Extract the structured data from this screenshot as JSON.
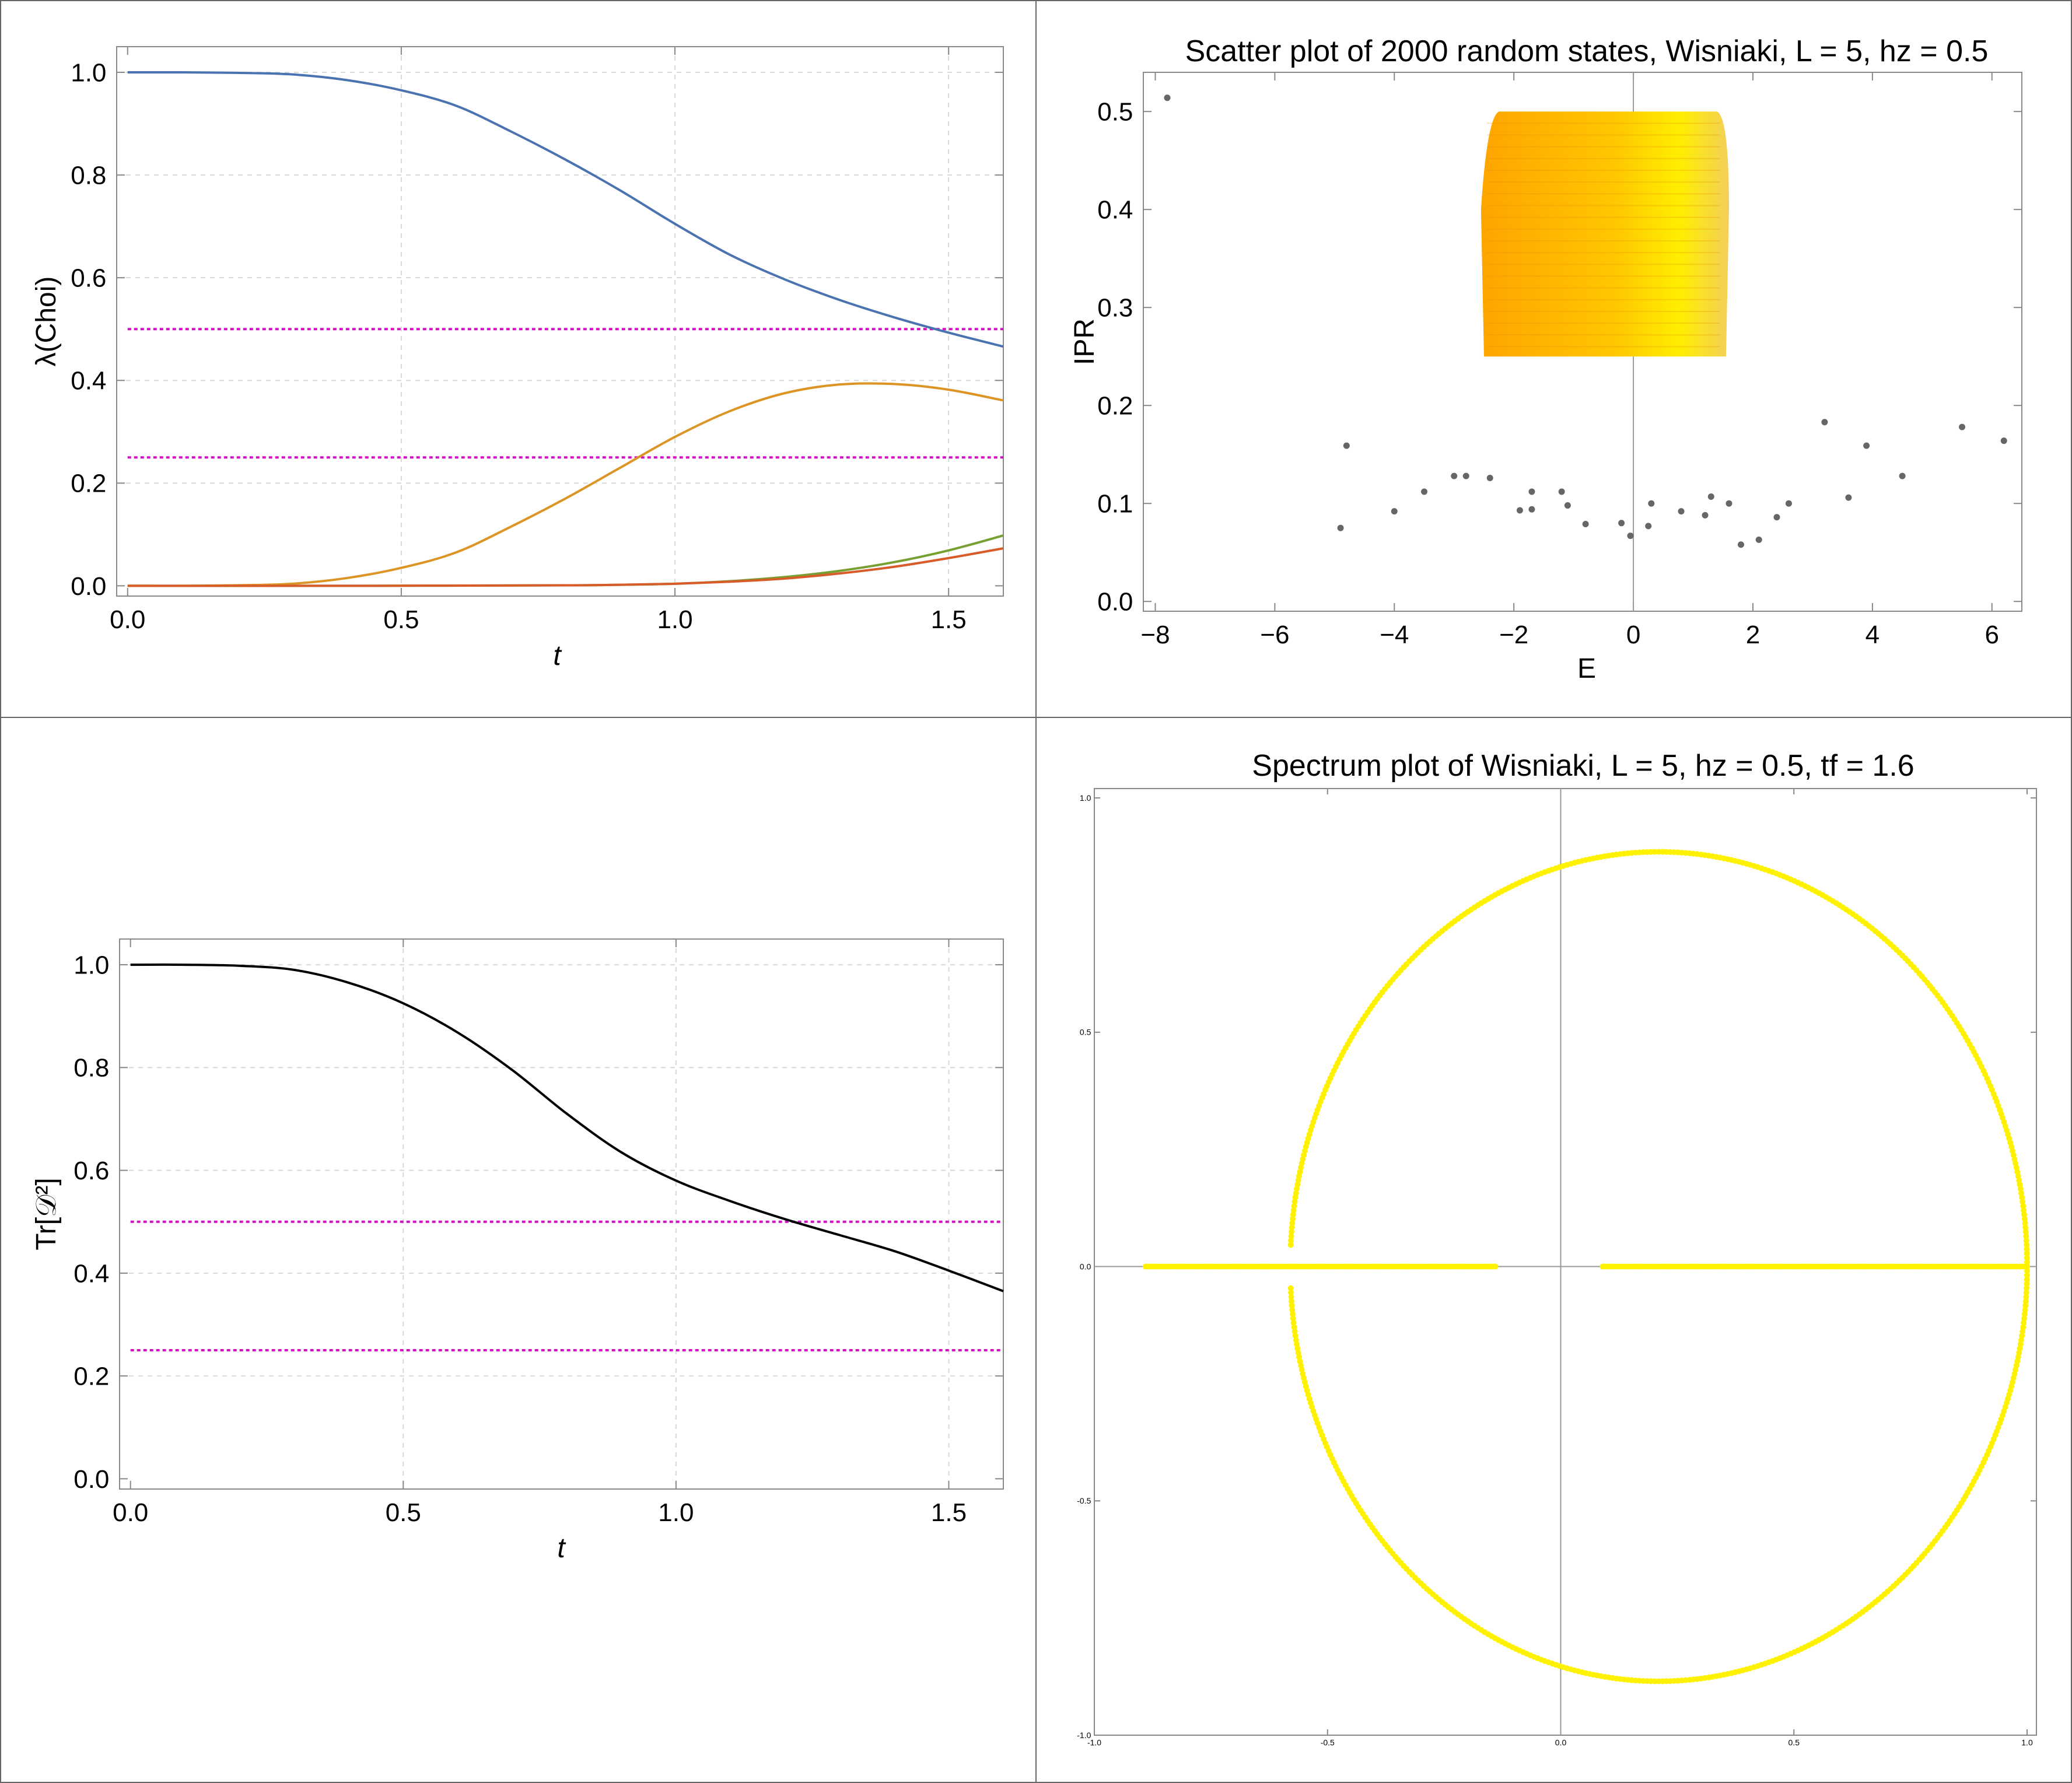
{
  "panels": [
    {
      "id": "choi",
      "type": "line",
      "title": "",
      "xlabel": "t",
      "ylabel": "λ(Choi)",
      "xlim": [
        -0.02,
        1.6
      ],
      "ylim": [
        -0.02,
        1.05
      ],
      "xticks": [
        0.0,
        0.5,
        1.0,
        1.5
      ],
      "xtick_labels": [
        "0.0",
        "0.5",
        "1.0",
        "1.5"
      ],
      "yticks": [
        0.0,
        0.2,
        0.4,
        0.6,
        0.8,
        1.0
      ],
      "ytick_labels": [
        "0.0",
        "0.2",
        "0.4",
        "0.6",
        "0.8",
        "1.0"
      ],
      "grid": true,
      "colors": {
        "blue": "#4a73b0",
        "orange": "#dc9524",
        "green": "#779f32",
        "red": "#d85c2a",
        "ref": "#d60fc7"
      },
      "series": [
        {
          "color": "blue",
          "x": [
            0,
            0.1,
            0.2,
            0.3,
            0.4,
            0.5,
            0.6,
            0.7,
            0.8,
            0.9,
            1.0,
            1.1,
            1.2,
            1.3,
            1.4,
            1.5,
            1.6
          ],
          "y": [
            1.0,
            1.0,
            0.999,
            0.996,
            0.985,
            0.965,
            0.935,
            0.885,
            0.83,
            0.77,
            0.705,
            0.645,
            0.597,
            0.557,
            0.523,
            0.493,
            0.466
          ]
        },
        {
          "color": "orange",
          "x": [
            0,
            0.1,
            0.2,
            0.3,
            0.4,
            0.5,
            0.6,
            0.7,
            0.8,
            0.9,
            1.0,
            1.1,
            1.2,
            1.3,
            1.4,
            1.5,
            1.6
          ],
          "y": [
            0.0,
            0.0,
            0.001,
            0.004,
            0.015,
            0.035,
            0.065,
            0.115,
            0.17,
            0.23,
            0.29,
            0.34,
            0.375,
            0.392,
            0.393,
            0.382,
            0.361
          ]
        },
        {
          "color": "green",
          "x": [
            0,
            0.4,
            0.8,
            0.9,
            1.0,
            1.1,
            1.2,
            1.3,
            1.4,
            1.5,
            1.6
          ],
          "y": [
            0.0,
            0.0,
            0.001,
            0.002,
            0.004,
            0.009,
            0.017,
            0.029,
            0.046,
            0.069,
            0.098
          ]
        },
        {
          "color": "red",
          "x": [
            0,
            0.4,
            0.8,
            0.9,
            1.0,
            1.1,
            1.2,
            1.3,
            1.4,
            1.5,
            1.6
          ],
          "y": [
            0.0,
            0.0,
            0.001,
            0.002,
            0.004,
            0.008,
            0.014,
            0.024,
            0.037,
            0.054,
            0.073
          ]
        }
      ],
      "reference_lines": [
        0.5,
        0.25
      ]
    },
    {
      "id": "ipr",
      "type": "scatter",
      "title": "Scatter plot of 2000 random states, Wisniaki, L = 5, hz = 0.5",
      "xlabel": "E",
      "ylabel": "IPR",
      "xlim": [
        -8.2,
        6.5
      ],
      "ylim": [
        -0.01,
        0.54
      ],
      "xticks": [
        -8,
        -6,
        -4,
        -2,
        0,
        2,
        4,
        6
      ],
      "xtick_labels": [
        "−8",
        "−6",
        "−4",
        "−2",
        "0",
        "2",
        "4",
        "6"
      ],
      "yticks": [
        0.0,
        0.1,
        0.2,
        0.3,
        0.4,
        0.5
      ],
      "ytick_labels": [
        "0.0",
        "0.1",
        "0.2",
        "0.3",
        "0.4",
        "0.5"
      ],
      "grid": false,
      "cluster": {
        "e_range": [
          -2.5,
          1.5
        ],
        "ipr_range": [
          0.25,
          0.5
        ],
        "color_left": "#ffa400",
        "color_right": "#ffee00"
      },
      "points": [
        [
          -7.8,
          0.514
        ],
        [
          -4.9,
          0.075
        ],
        [
          -4.8,
          0.159
        ],
        [
          -4.0,
          0.092
        ],
        [
          -3.5,
          0.112
        ],
        [
          -3.0,
          0.128
        ],
        [
          -2.8,
          0.128
        ],
        [
          -2.4,
          0.126
        ],
        [
          -1.9,
          0.093
        ],
        [
          -1.7,
          0.112
        ],
        [
          -1.7,
          0.094
        ],
        [
          -1.2,
          0.112
        ],
        [
          -1.1,
          0.098
        ],
        [
          -0.8,
          0.079
        ],
        [
          -0.2,
          0.08
        ],
        [
          -0.05,
          0.067
        ],
        [
          0.25,
          0.077
        ],
        [
          0.3,
          0.1
        ],
        [
          0.8,
          0.092
        ],
        [
          1.2,
          0.088
        ],
        [
          1.3,
          0.107
        ],
        [
          1.6,
          0.1
        ],
        [
          1.8,
          0.058
        ],
        [
          2.1,
          0.063
        ],
        [
          2.4,
          0.086
        ],
        [
          2.6,
          0.1
        ],
        [
          3.2,
          0.183
        ],
        [
          3.6,
          0.106
        ],
        [
          3.9,
          0.159
        ],
        [
          4.5,
          0.128
        ],
        [
          5.5,
          0.178
        ],
        [
          6.2,
          0.164
        ]
      ],
      "point_color": "#666666"
    },
    {
      "id": "trace",
      "type": "line",
      "title": "",
      "xlabel": "t",
      "ylabel": "Tr[𝒟²]",
      "xlim": [
        -0.02,
        1.6
      ],
      "ylim": [
        -0.02,
        1.05
      ],
      "xticks": [
        0.0,
        0.5,
        1.0,
        1.5
      ],
      "xtick_labels": [
        "0.0",
        "0.5",
        "1.0",
        "1.5"
      ],
      "yticks": [
        0.0,
        0.2,
        0.4,
        0.6,
        0.8,
        1.0
      ],
      "ytick_labels": [
        "0.0",
        "0.2",
        "0.4",
        "0.6",
        "0.8",
        "1.0"
      ],
      "grid": true,
      "colors": {
        "black": "#000000",
        "ref": "#d60fc7"
      },
      "series": [
        {
          "color": "black",
          "x": [
            0,
            0.1,
            0.2,
            0.3,
            0.4,
            0.5,
            0.6,
            0.7,
            0.8,
            0.9,
            1.0,
            1.1,
            1.2,
            1.3,
            1.4,
            1.5,
            1.6
          ],
          "y": [
            1.0,
            1.0,
            0.998,
            0.99,
            0.965,
            0.925,
            0.868,
            0.795,
            0.71,
            0.635,
            0.58,
            0.54,
            0.505,
            0.474,
            0.443,
            0.405,
            0.365
          ]
        }
      ],
      "reference_lines": [
        0.5,
        0.25
      ]
    },
    {
      "id": "spectrum",
      "type": "scatter",
      "title": "Spectrum plot of Wisniaki, L = 5, hz = 0.5, tf = 1.6",
      "xlabel": "",
      "ylabel": "",
      "xlim": [
        -1.0,
        1.02
      ],
      "ylim": [
        -1.0,
        1.02
      ],
      "xticks": [
        -1.0,
        -0.5,
        0.0,
        0.5,
        1.0
      ],
      "xtick_labels": [
        "-1.0",
        "-0.5",
        "0.0",
        "0.5",
        "1.0"
      ],
      "yticks": [
        -1.0,
        -0.5,
        0.0,
        0.5,
        1.0
      ],
      "ytick_labels": [
        "-1.0",
        "-0.5",
        "0.0",
        "0.5",
        "1.0"
      ],
      "grid": false,
      "ellipse": {
        "center": [
          0.21,
          0.0
        ],
        "rx": 0.79,
        "ry": 0.885
      },
      "real_segments": [
        [
          -0.89,
          -0.14
        ],
        [
          0.09,
          1.0
        ]
      ],
      "point_color": "#fff200"
    }
  ]
}
